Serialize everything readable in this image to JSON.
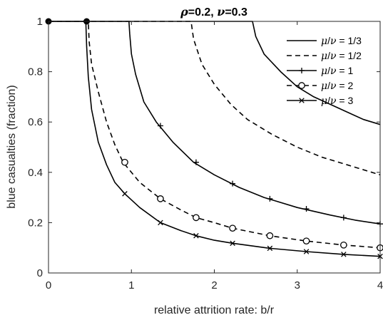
{
  "chart_data": {
    "type": "line",
    "title": {
      "rho_symbol": "ρ",
      "rho_value": "=0.2, ",
      "nu_symbol": "ν",
      "nu_value": "=0.3"
    },
    "xlabel": "relative attrition rate: b/r",
    "ylabel": "blue casualties (fraction)",
    "xlim": [
      0,
      4
    ],
    "ylim": [
      0,
      1
    ],
    "xticks": [
      0,
      1,
      2,
      3,
      4
    ],
    "xtick_labels": [
      "0",
      "1",
      "2",
      "3",
      "4"
    ],
    "yticks": [
      0,
      0.2,
      0.4,
      0.6,
      0.8,
      1
    ],
    "ytick_labels": [
      "0",
      "0.2",
      "0.4",
      "0.6",
      "0.8",
      "1"
    ],
    "grid": false,
    "legend_position": "top-right",
    "series": [
      {
        "legend": {
          "mu": "μ",
          "slash": "/",
          "nu": "ν",
          "ratio": " = 1/3"
        },
        "style": "solid",
        "marker": "none",
        "x": [
          0,
          2.46,
          2.5,
          2.6,
          2.8,
          3.0,
          3.2,
          3.4,
          3.6,
          3.8,
          4.0
        ],
        "y": [
          1.0,
          1.0,
          0.94,
          0.87,
          0.8,
          0.74,
          0.7,
          0.67,
          0.64,
          0.61,
          0.59
        ]
      },
      {
        "legend": {
          "mu": "μ",
          "slash": "/",
          "nu": "ν",
          "ratio": " = 1/2"
        },
        "style": "dashed",
        "marker": "none",
        "x": [
          0,
          1.72,
          1.75,
          1.85,
          2.0,
          2.2,
          2.4,
          2.7,
          3.0,
          3.3,
          3.6,
          4.0
        ],
        "y": [
          1.0,
          1.0,
          0.93,
          0.83,
          0.75,
          0.67,
          0.61,
          0.55,
          0.5,
          0.46,
          0.43,
          0.39
        ]
      },
      {
        "legend": {
          "mu": "μ",
          "slash": "/",
          "nu": "ν",
          "ratio": " = 1"
        },
        "style": "solid",
        "marker": "plus",
        "x": [
          0,
          0.97,
          0.98,
          1.0,
          1.05,
          1.15,
          1.3,
          1.5,
          1.75,
          2.0,
          2.3,
          2.6,
          3.0,
          3.4,
          3.7,
          4.0
        ],
        "y": [
          1.0,
          1.0,
          0.95,
          0.87,
          0.79,
          0.68,
          0.6,
          0.52,
          0.44,
          0.39,
          0.34,
          0.3,
          0.26,
          0.23,
          0.21,
          0.195
        ],
        "marker_x": [
          1.35,
          1.78,
          2.22,
          2.67,
          3.11,
          3.56,
          4.0
        ],
        "marker_y": [
          0.585,
          0.44,
          0.355,
          0.295,
          0.255,
          0.22,
          0.195
        ]
      },
      {
        "legend": {
          "mu": "μ",
          "slash": "/",
          "nu": "ν",
          "ratio": " = 2"
        },
        "style": "dashed",
        "marker": "circle",
        "x": [
          0,
          0.48,
          0.49,
          0.52,
          0.6,
          0.7,
          0.8,
          0.9,
          1.1,
          1.35,
          1.6,
          1.78,
          2.0,
          2.22,
          2.67,
          3.11,
          3.56,
          4.0
        ],
        "y": [
          1.0,
          1.0,
          0.92,
          0.83,
          0.72,
          0.6,
          0.51,
          0.44,
          0.36,
          0.295,
          0.25,
          0.22,
          0.2,
          0.178,
          0.148,
          0.127,
          0.111,
          0.1
        ],
        "marker_x": [
          0.92,
          1.35,
          1.78,
          2.22,
          2.67,
          3.11,
          3.56,
          4.0
        ],
        "marker_y": [
          0.44,
          0.295,
          0.22,
          0.178,
          0.148,
          0.127,
          0.111,
          0.1
        ]
      },
      {
        "legend": {
          "mu": "μ",
          "slash": "/",
          "nu": "ν",
          "ratio": " = 3"
        },
        "style": "solid",
        "marker": "cross",
        "x": [
          0,
          0.45,
          0.46,
          0.48,
          0.52,
          0.6,
          0.7,
          0.8,
          0.92,
          1.1,
          1.35,
          1.6,
          1.78,
          2.0,
          2.22,
          2.67,
          3.11,
          3.56,
          4.0
        ],
        "y": [
          1.0,
          1.0,
          0.9,
          0.78,
          0.65,
          0.52,
          0.43,
          0.36,
          0.315,
          0.26,
          0.2,
          0.168,
          0.148,
          0.13,
          0.118,
          0.098,
          0.085,
          0.074,
          0.066
        ],
        "marker_x": [
          0.92,
          1.35,
          1.78,
          2.22,
          2.67,
          3.11,
          3.56,
          4.0
        ],
        "marker_y": [
          0.315,
          0.2,
          0.148,
          0.118,
          0.098,
          0.085,
          0.074,
          0.066
        ]
      }
    ],
    "highlight_points": {
      "x": [
        0,
        0.46
      ],
      "y": [
        1.0,
        1.0
      ]
    }
  }
}
